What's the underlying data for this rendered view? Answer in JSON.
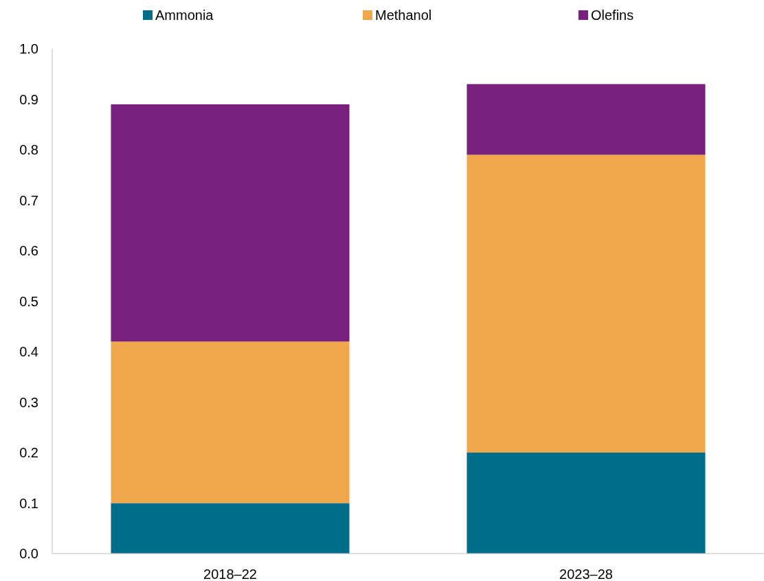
{
  "chart_data": {
    "type": "bar",
    "stacked": true,
    "categories": [
      "2018–22",
      "2023–28"
    ],
    "series": [
      {
        "name": "Ammonia",
        "color": "#006e8a",
        "values": [
          0.1,
          0.2
        ]
      },
      {
        "name": "Methanol",
        "color": "#f0a74c",
        "values": [
          0.32,
          0.59
        ]
      },
      {
        "name": "Olefins",
        "color": "#77207d",
        "values": [
          0.47,
          0.14
        ]
      }
    ],
    "ylim": [
      0,
      1
    ],
    "yticks": [
      {
        "value": 0,
        "label": "0.0"
      },
      {
        "value": 0.1,
        "label": "0.1"
      },
      {
        "value": 0.2,
        "label": "0.2"
      },
      {
        "value": 0.3,
        "label": "0.3"
      },
      {
        "value": 0.4,
        "label": "0.4"
      },
      {
        "value": 0.5,
        "label": "0.5"
      },
      {
        "value": 0.6,
        "label": "0.6"
      },
      {
        "value": 0.7,
        "label": "0.7"
      },
      {
        "value": 0.8,
        "label": "0.8"
      },
      {
        "value": 0.9,
        "label": "0.9"
      },
      {
        "value": 1,
        "label": "1.0"
      }
    ],
    "legend": "top",
    "grid": false
  }
}
